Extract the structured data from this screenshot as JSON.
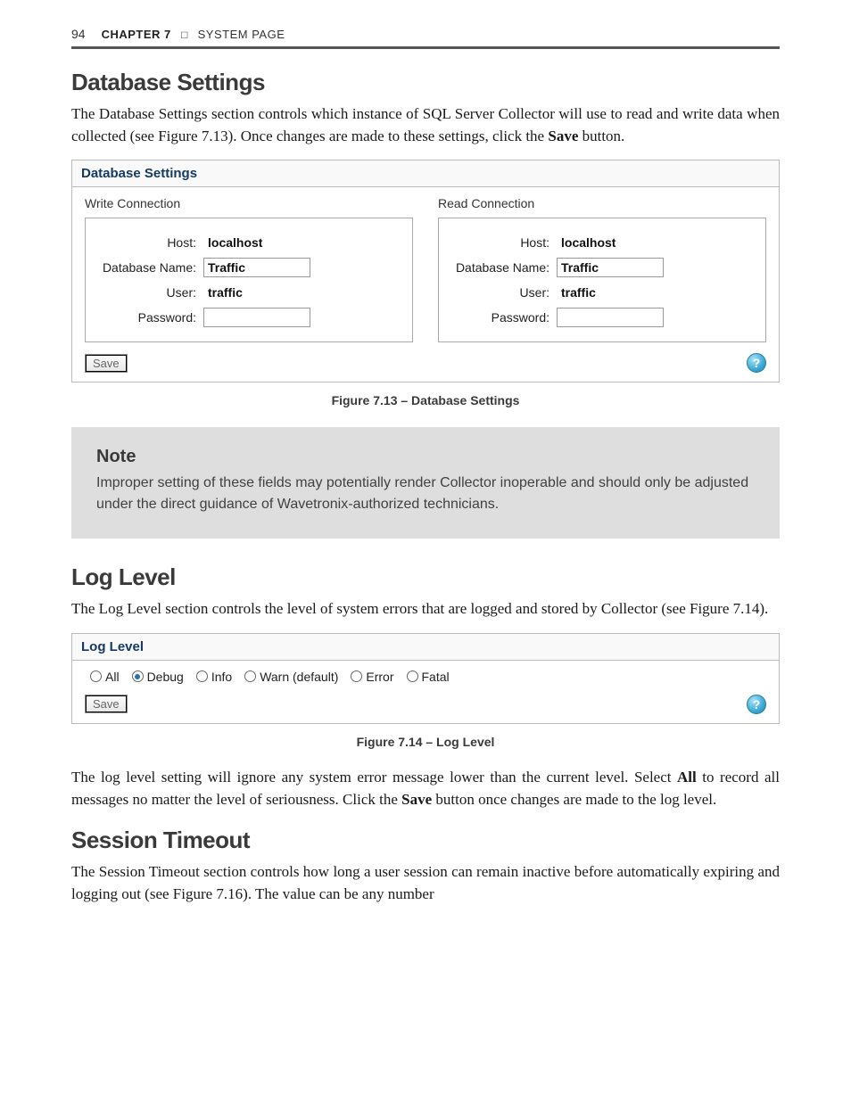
{
  "header": {
    "page_number": "94",
    "chapter_label": "CHAPTER 7",
    "chapter_title": "SYSTEM PAGE"
  },
  "section_db": {
    "heading": "Database Settings",
    "para": "The Database Settings section controls which instance of SQL Server Collector will use to read and write data when collected (see Figure 7.13). Once changes are made to these settings, click the ",
    "para_bold": "Save",
    "para_tail": " button."
  },
  "fig713": {
    "title": "Database Settings",
    "write_label": "Write Connection",
    "read_label": "Read Connection",
    "fields": {
      "host_label": "Host:",
      "dbname_label": "Database Name:",
      "user_label": "User:",
      "password_label": "Password:"
    },
    "write_vals": {
      "host": "localhost",
      "dbname": "Traffic",
      "user": "traffic",
      "password": ""
    },
    "read_vals": {
      "host": "localhost",
      "dbname": "Traffic",
      "user": "traffic",
      "password": ""
    },
    "save_label": "Save",
    "help_glyph": "?",
    "caption": "Figure 7.13 – Database Settings"
  },
  "note": {
    "title": "Note",
    "text": "Improper setting of these fields may potentially render Collector inoperable and should only be adjusted under the direct guidance of Wavetronix-authorized technicians."
  },
  "section_loglevel": {
    "heading": "Log Level",
    "para": "The Log Level section controls the level of system errors that are logged and stored by Collector (see Figure 7.14)."
  },
  "fig714": {
    "title": "Log Level",
    "options": [
      "All",
      "Debug",
      "Info",
      "Warn (default)",
      "Error",
      "Fatal"
    ],
    "selected_index": 1,
    "save_label": "Save",
    "help_glyph": "?",
    "caption": "Figure 7.14 – Log Level"
  },
  "loglevel_para2_a": "The log level setting will ignore any system error message lower than the current level. Select ",
  "loglevel_para2_bold1": "All",
  "loglevel_para2_b": " to record all messages no matter the level of seriousness. Click the ",
  "loglevel_para2_bold2": "Save",
  "loglevel_para2_c": " button once changes are made to the log level.",
  "section_session": {
    "heading": "Session Timeout",
    "para": "The Session Timeout section controls how long a user session can remain inactive before automatically expiring and logging out (see Figure 7.16). The value can be any number"
  },
  "colors": {
    "header_rule": "#555555",
    "section_heading": "#3a3a3a",
    "fig_header_text": "#163a63",
    "note_bg": "#dedede",
    "help_icon_bg": "#3aa9d6",
    "radio_dot": "#2b6fb0"
  }
}
